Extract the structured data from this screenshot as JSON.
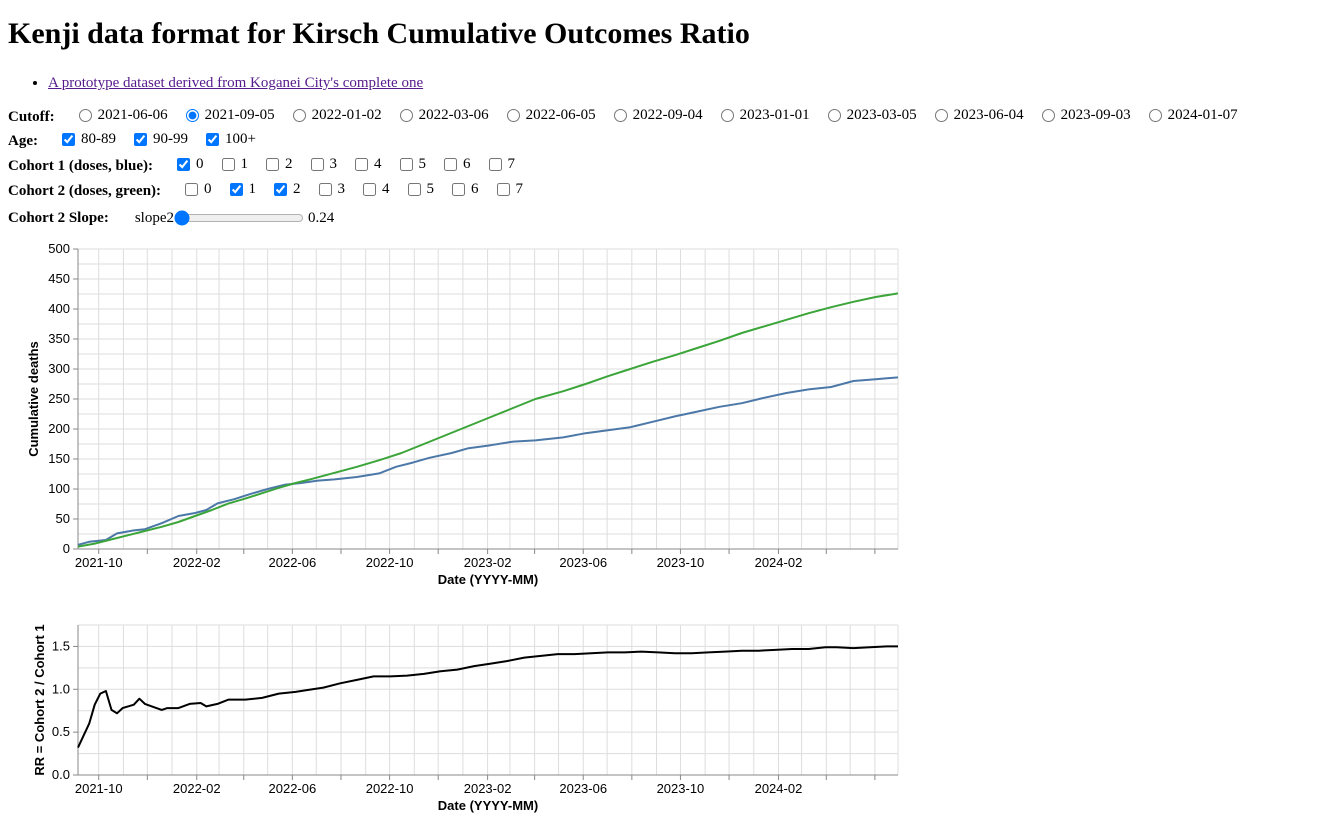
{
  "title": "Kenji data format for Kirsch Cumulative Outcomes Ratio",
  "link_text": "A prototype dataset derived from Koganei City's complete one",
  "cutoff": {
    "label": "Cutoff:",
    "options": [
      "2021-06-06",
      "2021-09-05",
      "2022-01-02",
      "2022-03-06",
      "2022-06-05",
      "2022-09-04",
      "2023-01-01",
      "2023-03-05",
      "2023-06-04",
      "2023-09-03",
      "2024-01-07"
    ],
    "selected": "2021-09-05"
  },
  "age": {
    "label": "Age:",
    "options": [
      {
        "label": "80-89",
        "checked": true
      },
      {
        "label": "90-99",
        "checked": true
      },
      {
        "label": "100+",
        "checked": true
      }
    ]
  },
  "cohort1": {
    "label": "Cohort 1 (doses, blue):",
    "options": [
      {
        "label": "0",
        "checked": true
      },
      {
        "label": "1",
        "checked": false
      },
      {
        "label": "2",
        "checked": false
      },
      {
        "label": "3",
        "checked": false
      },
      {
        "label": "4",
        "checked": false
      },
      {
        "label": "5",
        "checked": false
      },
      {
        "label": "6",
        "checked": false
      },
      {
        "label": "7",
        "checked": false
      }
    ]
  },
  "cohort2": {
    "label": "Cohort 2 (doses, green):",
    "options": [
      {
        "label": "0",
        "checked": false
      },
      {
        "label": "1",
        "checked": true
      },
      {
        "label": "2",
        "checked": true
      },
      {
        "label": "3",
        "checked": false
      },
      {
        "label": "4",
        "checked": false
      },
      {
        "label": "5",
        "checked": false
      },
      {
        "label": "6",
        "checked": false
      },
      {
        "label": "7",
        "checked": false
      }
    ]
  },
  "slope": {
    "label": "Cohort 2 Slope:",
    "name": "slope2",
    "value": "0.24",
    "fraction": 0.0
  },
  "colors": {
    "cohort1": "#4c78a8",
    "cohort2": "#3ca53a",
    "rr": "#000000",
    "grid": "#dddddd",
    "axis": "#888888"
  },
  "chart_data": [
    {
      "type": "line",
      "title": "",
      "xlabel": "Date (YYYY-MM)",
      "ylabel": "Cumulative deaths",
      "xlim": [
        "2021-09-05",
        "2024-06-30"
      ],
      "ylim": [
        0,
        500
      ],
      "yticks": [
        0,
        50,
        100,
        150,
        200,
        250,
        300,
        350,
        400,
        450,
        500
      ],
      "xticks": [
        {
          "date": "2021-10",
          "label": "2021-10"
        },
        {
          "date": "2021-12",
          "label": ""
        },
        {
          "date": "2022-02",
          "label": "2022-02"
        },
        {
          "date": "2022-04",
          "label": ""
        },
        {
          "date": "2022-06",
          "label": "2022-06"
        },
        {
          "date": "2022-08",
          "label": ""
        },
        {
          "date": "2022-10",
          "label": "2022-10"
        },
        {
          "date": "2022-12",
          "label": ""
        },
        {
          "date": "2023-02",
          "label": "2023-02"
        },
        {
          "date": "2023-04",
          "label": ""
        },
        {
          "date": "2023-06",
          "label": "2023-06"
        },
        {
          "date": "2023-08",
          "label": ""
        },
        {
          "date": "2023-10",
          "label": "2023-10"
        },
        {
          "date": "2023-12",
          "label": ""
        },
        {
          "date": "2024-02",
          "label": "2024-02"
        },
        {
          "date": "2024-04",
          "label": ""
        },
        {
          "date": "2024-06",
          "label": ""
        }
      ],
      "grid": true,
      "series": [
        {
          "name": "Cohort 1",
          "color": "#4c78a8",
          "points": [
            [
              "2021-09-05",
              7
            ],
            [
              "2021-09-19",
              12
            ],
            [
              "2021-10-10",
              15
            ],
            [
              "2021-10-24",
              26
            ],
            [
              "2021-11-14",
              31
            ],
            [
              "2021-11-28",
              33
            ],
            [
              "2021-12-19",
              43
            ],
            [
              "2022-01-09",
              55
            ],
            [
              "2022-01-30",
              60
            ],
            [
              "2022-02-13",
              65
            ],
            [
              "2022-02-27",
              76
            ],
            [
              "2022-03-20",
              83
            ],
            [
              "2022-04-10",
              92
            ],
            [
              "2022-05-01",
              100
            ],
            [
              "2022-05-22",
              107
            ],
            [
              "2022-06-12",
              110
            ],
            [
              "2022-07-03",
              114
            ],
            [
              "2022-07-24",
              116
            ],
            [
              "2022-08-21",
              120
            ],
            [
              "2022-09-18",
              126
            ],
            [
              "2022-10-09",
              137
            ],
            [
              "2022-10-30",
              144
            ],
            [
              "2022-11-20",
              152
            ],
            [
              "2022-12-18",
              160
            ],
            [
              "2023-01-08",
              168
            ],
            [
              "2023-02-05",
              173
            ],
            [
              "2023-03-05",
              179
            ],
            [
              "2023-04-02",
              181
            ],
            [
              "2023-05-07",
              186
            ],
            [
              "2023-06-04",
              193
            ],
            [
              "2023-07-02",
              198
            ],
            [
              "2023-07-30",
              203
            ],
            [
              "2023-08-27",
              212
            ],
            [
              "2023-09-24",
              221
            ],
            [
              "2023-10-22",
              229
            ],
            [
              "2023-11-19",
              237
            ],
            [
              "2023-12-17",
              243
            ],
            [
              "2024-01-14",
              252
            ],
            [
              "2024-02-11",
              260
            ],
            [
              "2024-03-10",
              266
            ],
            [
              "2024-04-07",
              270
            ],
            [
              "2024-05-05",
              280
            ],
            [
              "2024-06-02",
              283
            ],
            [
              "2024-06-30",
              286
            ]
          ]
        },
        {
          "name": "Cohort 2",
          "color": "#3ca53a",
          "points": [
            [
              "2021-09-05",
              4
            ],
            [
              "2021-09-26",
              9
            ],
            [
              "2021-10-17",
              16
            ],
            [
              "2021-11-07",
              23
            ],
            [
              "2021-11-28",
              30
            ],
            [
              "2021-12-19",
              37
            ],
            [
              "2022-01-09",
              45
            ],
            [
              "2022-01-30",
              55
            ],
            [
              "2022-02-20",
              65
            ],
            [
              "2022-03-13",
              76
            ],
            [
              "2022-04-03",
              84
            ],
            [
              "2022-04-24",
              93
            ],
            [
              "2022-05-15",
              102
            ],
            [
              "2022-06-05",
              110
            ],
            [
              "2022-06-26",
              117
            ],
            [
              "2022-07-24",
              127
            ],
            [
              "2022-08-21",
              137
            ],
            [
              "2022-09-18",
              148
            ],
            [
              "2022-10-16",
              160
            ],
            [
              "2022-11-13",
              175
            ],
            [
              "2022-12-11",
              190
            ],
            [
              "2023-01-08",
              205
            ],
            [
              "2023-02-05",
              220
            ],
            [
              "2023-03-05",
              235
            ],
            [
              "2023-04-02",
              250
            ],
            [
              "2023-05-07",
              263
            ],
            [
              "2023-06-04",
              275
            ],
            [
              "2023-07-02",
              288
            ],
            [
              "2023-07-30",
              300
            ],
            [
              "2023-08-27",
              312
            ],
            [
              "2023-09-24",
              323
            ],
            [
              "2023-10-22",
              335
            ],
            [
              "2023-11-19",
              347
            ],
            [
              "2023-12-17",
              360
            ],
            [
              "2024-01-14",
              371
            ],
            [
              "2024-02-11",
              382
            ],
            [
              "2024-03-10",
              393
            ],
            [
              "2024-04-07",
              403
            ],
            [
              "2024-05-05",
              412
            ],
            [
              "2024-06-02",
              420
            ],
            [
              "2024-06-30",
              426
            ]
          ]
        }
      ]
    },
    {
      "type": "line",
      "title": "",
      "xlabel": "Date (YYYY-MM)",
      "ylabel": "RR = Cohort 2 / Cohort 1",
      "xlim": [
        "2021-09-05",
        "2024-06-30"
      ],
      "ylim": [
        0,
        1.75
      ],
      "yticks": [
        0,
        0.5,
        1.0,
        1.5
      ],
      "ytick_labels": [
        "0.0",
        "0.5",
        "1.0",
        "1.5"
      ],
      "xticks": [
        {
          "date": "2021-10",
          "label": "2021-10"
        },
        {
          "date": "2021-12",
          "label": ""
        },
        {
          "date": "2022-02",
          "label": "2022-02"
        },
        {
          "date": "2022-04",
          "label": ""
        },
        {
          "date": "2022-06",
          "label": "2022-06"
        },
        {
          "date": "2022-08",
          "label": ""
        },
        {
          "date": "2022-10",
          "label": "2022-10"
        },
        {
          "date": "2022-12",
          "label": ""
        },
        {
          "date": "2023-02",
          "label": "2023-02"
        },
        {
          "date": "2023-04",
          "label": ""
        },
        {
          "date": "2023-06",
          "label": "2023-06"
        },
        {
          "date": "2023-08",
          "label": ""
        },
        {
          "date": "2023-10",
          "label": "2023-10"
        },
        {
          "date": "2023-12",
          "label": ""
        },
        {
          "date": "2024-02",
          "label": "2024-02"
        },
        {
          "date": "2024-04",
          "label": ""
        },
        {
          "date": "2024-06",
          "label": ""
        }
      ],
      "grid": true,
      "series": [
        {
          "name": "RR",
          "color": "#000000",
          "points": [
            [
              "2021-09-05",
              0.32
            ],
            [
              "2021-09-19",
              0.6
            ],
            [
              "2021-09-26",
              0.82
            ],
            [
              "2021-10-03",
              0.95
            ],
            [
              "2021-10-10",
              0.98
            ],
            [
              "2021-10-17",
              0.76
            ],
            [
              "2021-10-24",
              0.72
            ],
            [
              "2021-10-31",
              0.78
            ],
            [
              "2021-11-14",
              0.82
            ],
            [
              "2021-11-21",
              0.89
            ],
            [
              "2021-11-28",
              0.83
            ],
            [
              "2021-12-19",
              0.76
            ],
            [
              "2021-12-26",
              0.78
            ],
            [
              "2022-01-09",
              0.78
            ],
            [
              "2022-01-23",
              0.83
            ],
            [
              "2022-02-06",
              0.84
            ],
            [
              "2022-02-13",
              0.8
            ],
            [
              "2022-02-27",
              0.83
            ],
            [
              "2022-03-13",
              0.88
            ],
            [
              "2022-04-03",
              0.88
            ],
            [
              "2022-04-24",
              0.9
            ],
            [
              "2022-05-15",
              0.95
            ],
            [
              "2022-06-05",
              0.97
            ],
            [
              "2022-06-19",
              0.99
            ],
            [
              "2022-07-10",
              1.02
            ],
            [
              "2022-07-31",
              1.07
            ],
            [
              "2022-08-21",
              1.11
            ],
            [
              "2022-09-11",
              1.15
            ],
            [
              "2022-10-02",
              1.15
            ],
            [
              "2022-10-23",
              1.16
            ],
            [
              "2022-11-13",
              1.18
            ],
            [
              "2022-12-04",
              1.21
            ],
            [
              "2022-12-25",
              1.23
            ],
            [
              "2023-01-15",
              1.27
            ],
            [
              "2023-02-05",
              1.3
            ],
            [
              "2023-02-26",
              1.33
            ],
            [
              "2023-03-19",
              1.37
            ],
            [
              "2023-04-09",
              1.39
            ],
            [
              "2023-04-30",
              1.41
            ],
            [
              "2023-05-21",
              1.41
            ],
            [
              "2023-06-11",
              1.42
            ],
            [
              "2023-07-02",
              1.43
            ],
            [
              "2023-07-23",
              1.43
            ],
            [
              "2023-08-13",
              1.44
            ],
            [
              "2023-09-03",
              1.43
            ],
            [
              "2023-09-24",
              1.42
            ],
            [
              "2023-10-15",
              1.42
            ],
            [
              "2023-11-05",
              1.43
            ],
            [
              "2023-11-26",
              1.44
            ],
            [
              "2023-12-17",
              1.45
            ],
            [
              "2024-01-07",
              1.45
            ],
            [
              "2024-01-28",
              1.46
            ],
            [
              "2024-02-18",
              1.47
            ],
            [
              "2024-03-10",
              1.47
            ],
            [
              "2024-03-31",
              1.49
            ],
            [
              "2024-04-14",
              1.49
            ],
            [
              "2024-05-05",
              1.48
            ],
            [
              "2024-05-26",
              1.49
            ],
            [
              "2024-06-16",
              1.5
            ],
            [
              "2024-06-30",
              1.5
            ]
          ]
        }
      ]
    }
  ]
}
